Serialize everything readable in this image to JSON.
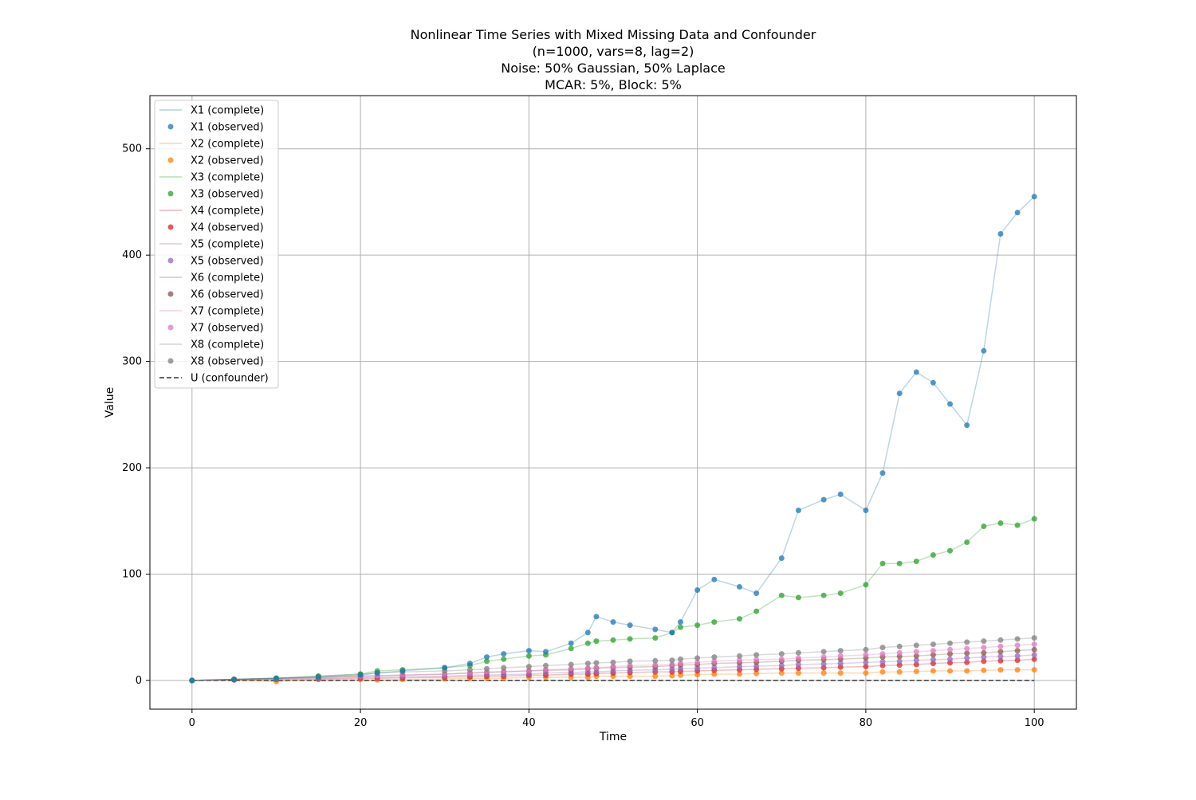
{
  "chart_data": {
    "type": "line",
    "title_lines": [
      "Nonlinear Time Series with Mixed Missing Data and Confounder",
      "(n=1000, vars=8, lag=2)",
      "Noise: 50% Gaussian, 50% Laplace",
      "MCAR: 5%, Block: 5%"
    ],
    "xlabel": "Time",
    "ylabel": "Value",
    "xlim": [
      -5,
      105
    ],
    "ylim": [
      -27,
      550
    ],
    "xticks": [
      0,
      20,
      40,
      60,
      80,
      100
    ],
    "yticks": [
      0,
      100,
      200,
      300,
      400,
      500
    ],
    "grid": true,
    "legend_position": "top-left",
    "colors": {
      "X1": "#1f77b4",
      "X2": "#ff7f0e",
      "X3": "#2ca02c",
      "X4": "#d62728",
      "X5": "#9467bd",
      "X6": "#8c564b",
      "X7": "#e377c2",
      "X8": "#7f7f7f",
      "U": "#333333"
    },
    "legend": [
      {
        "label": "X1 (complete)",
        "series": "X1",
        "kind": "line"
      },
      {
        "label": "X1 (observed)",
        "series": "X1",
        "kind": "marker"
      },
      {
        "label": "X2 (complete)",
        "series": "X2",
        "kind": "line"
      },
      {
        "label": "X2 (observed)",
        "series": "X2",
        "kind": "marker"
      },
      {
        "label": "X3 (complete)",
        "series": "X3",
        "kind": "line"
      },
      {
        "label": "X3 (observed)",
        "series": "X3",
        "kind": "marker"
      },
      {
        "label": "X4 (complete)",
        "series": "X4",
        "kind": "line"
      },
      {
        "label": "X4 (observed)",
        "series": "X4",
        "kind": "marker"
      },
      {
        "label": "X5 (complete)",
        "series": "X5",
        "kind": "line"
      },
      {
        "label": "X5 (observed)",
        "series": "X5",
        "kind": "marker"
      },
      {
        "label": "X6 (complete)",
        "series": "X6",
        "kind": "line"
      },
      {
        "label": "X6 (observed)",
        "series": "X6",
        "kind": "marker"
      },
      {
        "label": "X7 (complete)",
        "series": "X7",
        "kind": "line"
      },
      {
        "label": "X7 (observed)",
        "series": "X7",
        "kind": "marker"
      },
      {
        "label": "X8 (complete)",
        "series": "X8",
        "kind": "line"
      },
      {
        "label": "X8 (observed)",
        "series": "X8",
        "kind": "marker"
      },
      {
        "label": "U (confounder)",
        "series": "U",
        "kind": "dashed"
      }
    ],
    "x": [
      0,
      5,
      10,
      15,
      20,
      22,
      25,
      30,
      33,
      35,
      37,
      40,
      42,
      45,
      47,
      48,
      50,
      52,
      55,
      57,
      58,
      60,
      62,
      65,
      67,
      70,
      72,
      75,
      77,
      80,
      82,
      84,
      86,
      88,
      90,
      92,
      94,
      96,
      98,
      100
    ],
    "series": [
      {
        "name": "X1",
        "values": [
          0,
          1,
          2,
          3,
          5,
          7,
          9,
          12,
          16,
          22,
          25,
          28,
          27,
          35,
          45,
          60,
          55,
          52,
          48,
          45,
          55,
          85,
          95,
          88,
          82,
          115,
          160,
          170,
          175,
          160,
          195,
          270,
          290,
          280,
          260,
          240,
          310,
          420,
          440,
          455
        ]
      },
      {
        "name": "X2",
        "values": [
          0,
          0.5,
          -1,
          1,
          1,
          0.5,
          1,
          1.5,
          2,
          2,
          2,
          3,
          3,
          3,
          3,
          4,
          4,
          4,
          4,
          4.5,
          5,
          5.5,
          6,
          6,
          6.5,
          7,
          7,
          7,
          7,
          7,
          8,
          8,
          8.5,
          9,
          9,
          9,
          9.5,
          10,
          10,
          10
        ]
      },
      {
        "name": "X3",
        "values": [
          0,
          1,
          2,
          4,
          6,
          9,
          10,
          12,
          14,
          18,
          20,
          23,
          24,
          30,
          35,
          37,
          38,
          39,
          40,
          45,
          50,
          52,
          55,
          58,
          65,
          80,
          78,
          80,
          82,
          90,
          110,
          110,
          112,
          118,
          122,
          130,
          145,
          148,
          146,
          152
        ]
      },
      {
        "name": "X4",
        "values": [
          0,
          0.5,
          1,
          1.5,
          2,
          2,
          2.5,
          3,
          3.5,
          4,
          4,
          5,
          5,
          6,
          6,
          6.5,
          7,
          7.5,
          8,
          8,
          8.5,
          9,
          9.5,
          10,
          10.5,
          11,
          11.5,
          12,
          12.5,
          13,
          14,
          14.5,
          15,
          16,
          16.5,
          17,
          18,
          18.5,
          19,
          20
        ]
      },
      {
        "name": "X5",
        "values": [
          0,
          1,
          1.5,
          2,
          3,
          3,
          3.5,
          4,
          5,
          5,
          5.5,
          6,
          7,
          7.5,
          8,
          8,
          9,
          9.5,
          10,
          10.5,
          11,
          11.5,
          12,
          13,
          13.5,
          14,
          15,
          15.5,
          16,
          17,
          17.5,
          18,
          19,
          19.5,
          20,
          21,
          22,
          22.5,
          23,
          24
        ]
      },
      {
        "name": "X6",
        "values": [
          0,
          1,
          2,
          3,
          4,
          4.5,
          5,
          6,
          7,
          7.5,
          8,
          9,
          9.5,
          10,
          11,
          11.5,
          12,
          12.5,
          13,
          14,
          14.5,
          15,
          16,
          16.5,
          17,
          18,
          19,
          19.5,
          20,
          21,
          22,
          22.5,
          23,
          24,
          25,
          25.5,
          26,
          27,
          28,
          29
        ]
      },
      {
        "name": "X7",
        "values": [
          0,
          1,
          2,
          3,
          4,
          4.5,
          5,
          6,
          7,
          8,
          8.5,
          9,
          10,
          11,
          11.5,
          12,
          13,
          14,
          14.5,
          15,
          16,
          17,
          18,
          19,
          19.5,
          20,
          21,
          22,
          23,
          24,
          25,
          26,
          27,
          28,
          29,
          30,
          31,
          32,
          33,
          34
        ]
      },
      {
        "name": "X8",
        "values": [
          0,
          1,
          2,
          4,
          6,
          7,
          8,
          9,
          10,
          11,
          12,
          13,
          14,
          15,
          16,
          16.5,
          17,
          18,
          18.5,
          19,
          20,
          21,
          22,
          23,
          24,
          25,
          26,
          27,
          28,
          29,
          31,
          32,
          33,
          34,
          35,
          36,
          37,
          38,
          39,
          40
        ]
      },
      {
        "name": "U",
        "values": [
          0,
          0,
          0,
          0,
          0,
          0,
          0,
          0,
          0,
          0,
          0,
          0,
          0,
          0,
          0,
          0,
          0,
          0,
          0,
          0,
          0,
          0,
          0,
          0,
          0,
          0,
          0,
          0,
          0,
          0,
          0,
          0,
          0,
          0,
          0,
          0,
          0,
          0,
          0,
          0
        ]
      }
    ]
  }
}
